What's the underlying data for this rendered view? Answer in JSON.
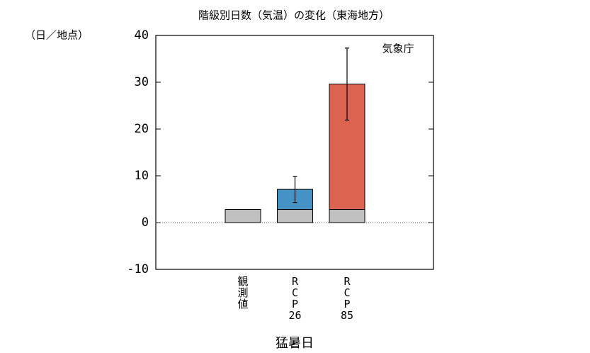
{
  "chart_data": {
    "type": "stacked-bar-error",
    "title": "階級別日数（気温）の変化（東海地方）",
    "y_unit": "（日／地点）",
    "annotation": "気象庁",
    "x_label": "猛暑日",
    "categories": [
      "観測値",
      "RCP26",
      "RCP85"
    ],
    "series": [
      {
        "color": "#c0c0c0",
        "values": [
          2.8,
          2.8,
          2.8
        ]
      },
      {
        "colors": [
          null,
          "#4593c6",
          "#dc634f"
        ],
        "values": [
          null,
          4.3,
          26.8
        ],
        "errors": [
          null,
          2.8,
          7.7
        ]
      }
    ],
    "ylim": [
      -10,
      40
    ],
    "yticks": [
      -10,
      0,
      10,
      20,
      30,
      40
    ],
    "zero_line": true
  }
}
